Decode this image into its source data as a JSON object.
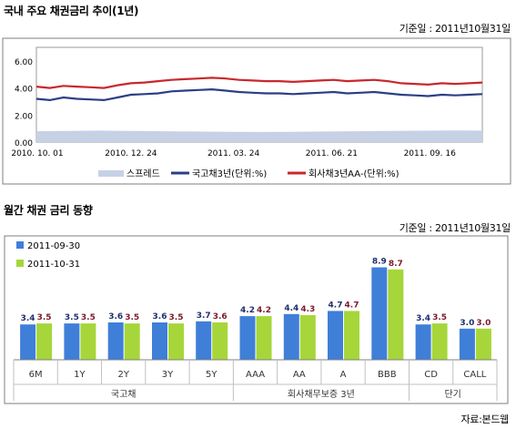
{
  "section1": {
    "title": "국내 주요 채권금리 추이(1년)",
    "base_date": "기준일 : 2011년10월31일"
  },
  "section2": {
    "title": "월간 채권 금리 동향",
    "base_date": "기준일 : 2011년10월31일"
  },
  "source": "자료:본드웹",
  "chart_data": [
    {
      "type": "line",
      "title": "국내 주요 채권금리 추이(1년)",
      "ylim": [
        0,
        7
      ],
      "yticks": [
        "0.00",
        "2.00",
        "4.00",
        "6.00"
      ],
      "xticks": [
        "2010. 10. 01",
        "2010. 12. 24",
        "2011. 03. 24",
        "2011. 06. 21",
        "2011. 09. 16"
      ],
      "x_range": [
        "2010-10-01",
        "2011-10-31"
      ],
      "grid": false,
      "legend_position": "bottom",
      "series": [
        {
          "name": "스프레드",
          "kind": "area",
          "color": "#c7d1e6",
          "values": [
            0.8,
            0.82,
            0.85,
            0.82,
            0.8,
            0.78,
            0.76,
            0.75,
            0.76,
            0.78,
            0.8,
            0.82,
            0.84,
            0.86,
            0.85
          ]
        },
        {
          "name": "국고채3년(단위:%)",
          "kind": "line",
          "color": "#2b3f87",
          "values": [
            3.2,
            3.1,
            3.3,
            3.2,
            3.15,
            3.1,
            3.3,
            3.5,
            3.55,
            3.6,
            3.75,
            3.8,
            3.85,
            3.9,
            3.8,
            3.7,
            3.65,
            3.6,
            3.6,
            3.55,
            3.6,
            3.65,
            3.7,
            3.6,
            3.65,
            3.7,
            3.6,
            3.5,
            3.45,
            3.4,
            3.5,
            3.45,
            3.5,
            3.55
          ]
        },
        {
          "name": "회사채3년AA-(단위:%)",
          "kind": "line",
          "color": "#c8282d",
          "values": [
            4.1,
            4.0,
            4.15,
            4.1,
            4.05,
            4.0,
            4.2,
            4.35,
            4.4,
            4.5,
            4.6,
            4.65,
            4.7,
            4.75,
            4.7,
            4.6,
            4.55,
            4.5,
            4.5,
            4.45,
            4.5,
            4.55,
            4.6,
            4.5,
            4.55,
            4.6,
            4.5,
            4.35,
            4.3,
            4.25,
            4.35,
            4.3,
            4.35,
            4.4
          ]
        }
      ]
    },
    {
      "type": "bar",
      "title": "월간 채권 금리 동향",
      "ylim": [
        0,
        10
      ],
      "categories": [
        "6M",
        "1Y",
        "2Y",
        "3Y",
        "5Y",
        "AAA",
        "AA",
        "A",
        "BBB",
        "CD",
        "CALL"
      ],
      "groups": [
        {
          "label": "국고채",
          "categories": [
            "6M",
            "1Y",
            "2Y",
            "3Y",
            "5Y"
          ]
        },
        {
          "label": "회사채무보증 3년",
          "categories": [
            "AAA",
            "AA",
            "A",
            "BBB"
          ]
        },
        {
          "label": "단기",
          "categories": [
            "CD",
            "CALL"
          ]
        }
      ],
      "legend_position": "top-left",
      "series": [
        {
          "name": "2011-09-30",
          "color": "#3f7fd8",
          "label_color": "#1f2f6f",
          "values": [
            3.4,
            3.5,
            3.6,
            3.6,
            3.7,
            4.2,
            4.4,
            4.7,
            8.9,
            3.4,
            3.0
          ]
        },
        {
          "name": "2011-10-31",
          "color": "#a6d63a",
          "label_color": "#7a1a2a",
          "values": [
            3.5,
            3.5,
            3.5,
            3.5,
            3.6,
            4.2,
            4.3,
            4.7,
            8.7,
            3.5,
            3.0
          ]
        }
      ]
    }
  ]
}
